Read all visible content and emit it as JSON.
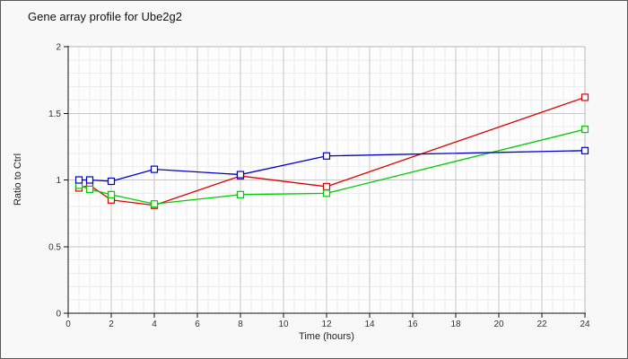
{
  "window": {
    "bg": "#f8f8f9",
    "border_color": "#5a5a5a"
  },
  "header": {
    "title": "Gene array profile for Ube2g2"
  },
  "colors": {
    "plot_bg": "#fdfdfd",
    "plot_border": "#b8b8b8",
    "axis": "#111111",
    "tick_text": "#333333",
    "series_red": "#dd0000",
    "series_green": "#00cc00",
    "series_blue": "#0000cc"
  },
  "chart_data": {
    "type": "line",
    "title": "Gene array profile for Ube2g2",
    "xlabel": "Time (hours)",
    "ylabel": "Ratio to Ctrl",
    "x": [
      0.5,
      1,
      2,
      4,
      8,
      12,
      24
    ],
    "series": [
      {
        "name": "red",
        "color": "#dd0000",
        "values": [
          0.94,
          0.96,
          0.85,
          0.81,
          1.03,
          0.95,
          1.62
        ]
      },
      {
        "name": "green",
        "color": "#00cc00",
        "values": [
          0.96,
          0.93,
          0.89,
          0.82,
          0.89,
          0.9,
          1.38
        ]
      },
      {
        "name": "blue",
        "color": "#0000cc",
        "values": [
          1.0,
          1.0,
          0.99,
          1.08,
          1.04,
          1.18,
          1.22
        ]
      }
    ],
    "xlim": [
      0,
      24
    ],
    "ylim": [
      0,
      2
    ],
    "x_ticks": [
      0,
      2,
      4,
      6,
      8,
      10,
      12,
      14,
      16,
      18,
      20,
      22,
      24
    ],
    "y_ticks": [
      0,
      0.5,
      1,
      1.5,
      2
    ],
    "y_tick_labels": [
      "0",
      "0.5",
      "1",
      "1.5",
      "2"
    ],
    "grid": {
      "minor_x_step": 0.5,
      "minor_y_step": 0.1,
      "major_x_step": 2,
      "major_y_step": 0.5,
      "major_color": "#c8c8c8",
      "minor_color": "#ededed"
    },
    "marker": "open-square",
    "legend": "none"
  }
}
